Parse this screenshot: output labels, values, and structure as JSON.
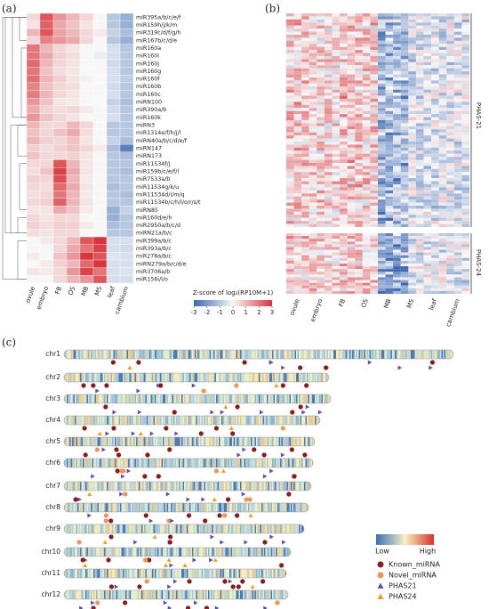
{
  "panel_a": {
    "label": "(a)",
    "rows": [
      "miR395a/b/c/e/f",
      "miR159h/j/k/m",
      "miR319c/d/f/g/h",
      "miR167b/c/d/e",
      "miR160a",
      "miR160i",
      "miR160j",
      "miR160g",
      "miR160f",
      "miR160b",
      "miR160c",
      "miRN100",
      "miR390a/b",
      "miR160k",
      "miRN3",
      "miR1314e/f/h/j/l",
      "miRN40a/b/c/d/e/f",
      "miRN147",
      "miRN173",
      "miR11534f/j",
      "miR159b/c/e/f/l",
      "miR7533a/b",
      "miR11534g/k/u",
      "miR11534d/i/m/q",
      "miR11534b/c/h/l/o/r/s/t",
      "miRN85",
      "miR160d/e/h",
      "miR2950a/b/c/d",
      "miRN21a/b/c",
      "miR399a/b/c",
      "miR393a/b/c",
      "miR278a/b/c",
      "miRN279a/b/c/d/e",
      "miR3706a/b",
      "miR156i/l/o"
    ],
    "columns": [
      "ovule",
      "embryo",
      "FB",
      "OS",
      "MB",
      "MS",
      "leaf",
      "cambium"
    ],
    "values": [
      [
        0.5,
        2.5,
        1.5,
        1,
        0.5,
        0,
        -1,
        -1.5
      ],
      [
        0.3,
        2.3,
        1.2,
        0.8,
        0.3,
        0,
        -1,
        -1.5
      ],
      [
        1,
        2.5,
        1.3,
        1,
        0.5,
        0.2,
        -0.8,
        -1.2
      ],
      [
        0.5,
        1.8,
        1.5,
        1.2,
        0.5,
        0,
        -1,
        -1.5
      ],
      [
        2,
        1,
        0.5,
        0.3,
        0,
        0,
        -0.5,
        -1
      ],
      [
        2,
        1.2,
        0.6,
        0.4,
        0,
        -0.2,
        -0.5,
        -1
      ],
      [
        2.2,
        1,
        0.5,
        0.3,
        0,
        0,
        -0.6,
        -1
      ],
      [
        2,
        0.8,
        0.4,
        0.3,
        0,
        0,
        -0.5,
        -1
      ],
      [
        2.1,
        1,
        0.6,
        0.3,
        0.1,
        0,
        -0.5,
        -0.9
      ],
      [
        1.8,
        0.8,
        0.5,
        0.4,
        0,
        0,
        -0.6,
        -1
      ],
      [
        1.9,
        1,
        0.5,
        0.3,
        0,
        0,
        -0.5,
        -1
      ],
      [
        1.5,
        0.8,
        0.3,
        0.2,
        0,
        0,
        -0.8,
        -1.2
      ],
      [
        1.2,
        0.6,
        0.4,
        0.5,
        0.2,
        0,
        -0.6,
        -1
      ],
      [
        1.5,
        0.8,
        0.5,
        0.3,
        0,
        0,
        -0.5,
        -1
      ],
      [
        1,
        0.5,
        0.5,
        1,
        0.5,
        0,
        -1,
        -1
      ],
      [
        0.8,
        0.5,
        0.8,
        1.2,
        0.4,
        0,
        -1,
        -1
      ],
      [
        1,
        0.6,
        0.5,
        0.8,
        0.3,
        0,
        -0.8,
        -1.2
      ],
      [
        0.6,
        0.4,
        0.6,
        0.8,
        0.5,
        0.2,
        -1.2,
        -2.5
      ],
      [
        0.8,
        0.5,
        0.5,
        0.6,
        0.3,
        0,
        -1,
        -1.2
      ],
      [
        0.5,
        0.5,
        2.5,
        1,
        0.3,
        0,
        -1,
        -1
      ],
      [
        0.4,
        0.8,
        2.8,
        1.2,
        0.3,
        0,
        -1,
        -1.2
      ],
      [
        0.6,
        0.5,
        2.6,
        1,
        0.2,
        0,
        -1,
        -1
      ],
      [
        0.5,
        0.4,
        2.2,
        1.2,
        0.3,
        0,
        -1.2,
        -1
      ],
      [
        0.4,
        0.5,
        2,
        1,
        0.2,
        0,
        -1,
        -1.2
      ],
      [
        0.5,
        0.6,
        2.3,
        1,
        0.3,
        0,
        -1,
        -1
      ],
      [
        0.3,
        0.3,
        1.2,
        0.8,
        0.2,
        0,
        -1.5,
        -0.8
      ],
      [
        0.5,
        0.3,
        0.5,
        0.5,
        0,
        0,
        -1.5,
        -1
      ],
      [
        0.6,
        0.4,
        0.6,
        0.6,
        0.2,
        0,
        -1.2,
        -1
      ],
      [
        0.4,
        0.3,
        0.5,
        0.5,
        0,
        0,
        -1,
        -1
      ],
      [
        0,
        0.2,
        0.5,
        1,
        2.5,
        3,
        -0.5,
        -0.5
      ],
      [
        0,
        0,
        0.5,
        1.2,
        2,
        2.8,
        -0.5,
        -0.6
      ],
      [
        0.2,
        0,
        0.8,
        1.5,
        3,
        2.5,
        -0.4,
        -0.5
      ],
      [
        0,
        0.2,
        0.6,
        1,
        2.2,
        3,
        -0.5,
        -0.5
      ],
      [
        0.3,
        0.2,
        0.5,
        1.5,
        2.8,
        2,
        -0.5,
        -0.4
      ],
      [
        0,
        0,
        0.5,
        1,
        1.5,
        2.5,
        -0.5,
        -0.5
      ]
    ],
    "colorbar": {
      "title": "Z-score of log₂(RP10M+1)",
      "ticks": [
        -3,
        -2,
        -1,
        0,
        1,
        2,
        3
      ]
    }
  },
  "panel_b": {
    "label": "(b)",
    "groups": [
      "PHAS-21",
      "PHAS-24"
    ],
    "columns": [
      "ovule",
      "embryo",
      "FB",
      "OS",
      "MB",
      "MS",
      "leaf",
      "cambium"
    ]
  },
  "panel_c": {
    "label": "(c)",
    "chromosomes": [
      "chr1",
      "chr2",
      "chr3",
      "chr4",
      "chr5",
      "chr6",
      "chr7",
      "chr8",
      "chr9",
      "chr10",
      "chr11",
      "chr12"
    ],
    "legend": {
      "low": "Low",
      "high": "High",
      "items": [
        "Known_miRNA",
        "Novel_miRNA",
        "PHAS21",
        "PHAS24"
      ]
    }
  }
}
